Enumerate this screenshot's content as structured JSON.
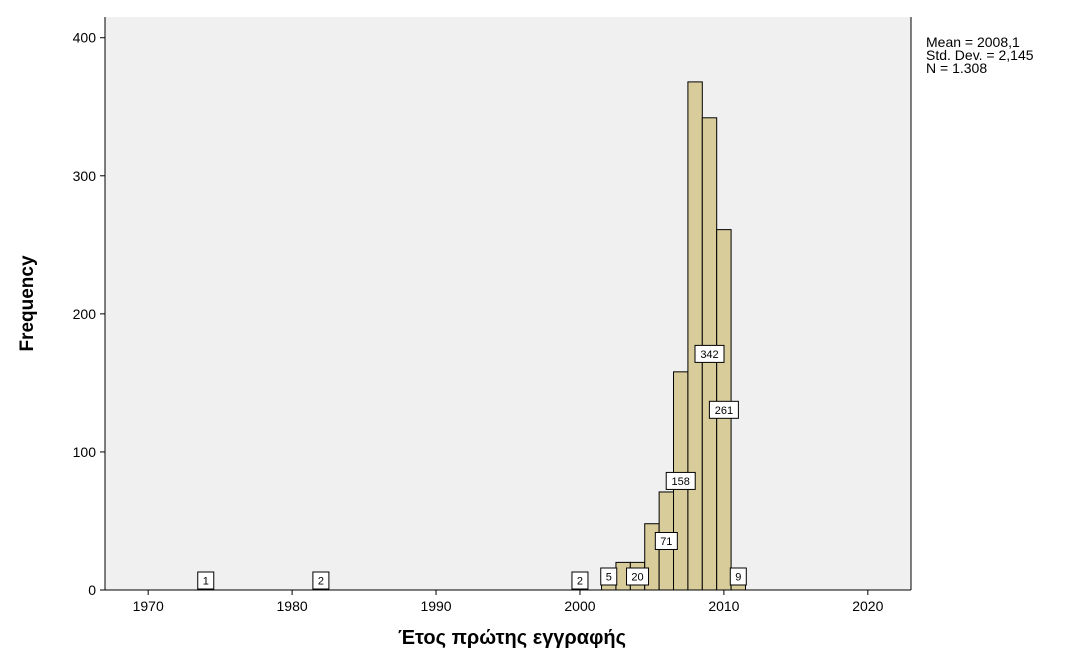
{
  "chart_data": {
    "type": "bar",
    "subtype": "histogram",
    "xlabel": "Έτος πρώτης εγγραφής",
    "ylabel": "Frequency",
    "xlim": [
      1967,
      2023
    ],
    "ylim": [
      0,
      415
    ],
    "x_ticks": [
      1970,
      1980,
      1990,
      2000,
      2010,
      2020
    ],
    "y_ticks": [
      0,
      100,
      200,
      300,
      400
    ],
    "bin_width": 1,
    "grid": false,
    "colors": {
      "bar_fill": "#d8cc9a",
      "bar_stroke": "#000000",
      "plot_background": "#f0f0f0"
    },
    "bins": [
      {
        "x": 1974,
        "value": 1,
        "label": "1"
      },
      {
        "x": 1982,
        "value": 2,
        "label": "2"
      },
      {
        "x": 2000,
        "value": 2,
        "label": "2"
      },
      {
        "x": 2002,
        "value": 5,
        "label": "5"
      },
      {
        "x": 2003,
        "value": 20
      },
      {
        "x": 2004,
        "value": 20,
        "label": "20"
      },
      {
        "x": 2005,
        "value": 48
      },
      {
        "x": 2006,
        "value": 71,
        "label": "71"
      },
      {
        "x": 2007,
        "value": 158,
        "label": "158"
      },
      {
        "x": 2008,
        "value": 368
      },
      {
        "x": 2009,
        "value": 342,
        "label": "342"
      },
      {
        "x": 2010,
        "value": 261,
        "label": "261"
      },
      {
        "x": 2011,
        "value": 9,
        "label": "9"
      }
    ],
    "stats": {
      "mean": "Mean = 2008,1",
      "std": "Std. Dev. = 2,145",
      "n": "N = 1.308"
    }
  }
}
